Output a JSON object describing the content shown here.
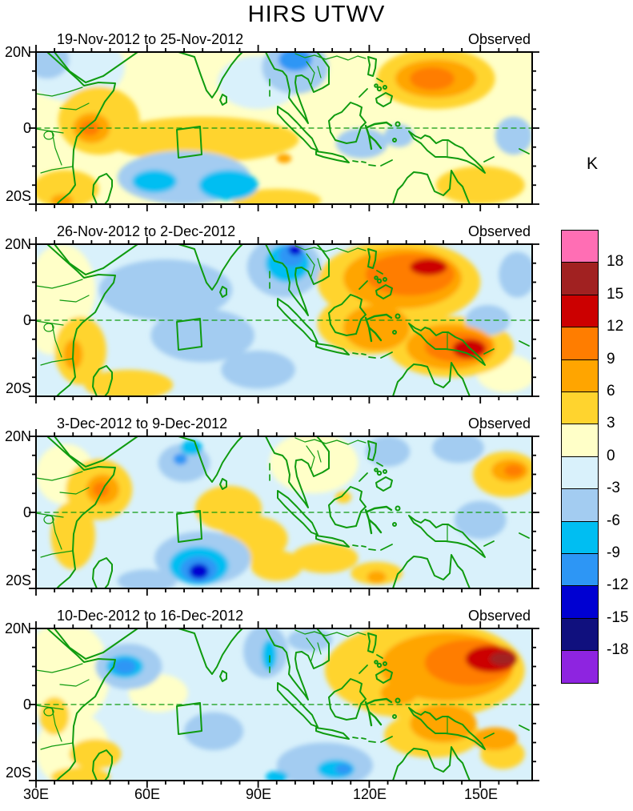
{
  "title": "HIRS UTWV",
  "unit_label": "K",
  "chart_data": {
    "type": "heatmap",
    "title": "HIRS UTWV",
    "subtitle": "HIRS upper-tropospheric water vapor brightness-temperature anomaly maps, weekly means",
    "unit": "K",
    "axes": {
      "lon_labels": [
        "30E",
        "60E",
        "90E",
        "120E",
        "150E"
      ],
      "lon_ticks_deg": [
        30,
        60,
        90,
        120,
        150
      ],
      "lat_labels": [
        "20N",
        "0",
        "20S"
      ],
      "lon_range": [
        30,
        164
      ],
      "lat_range": [
        -20,
        20
      ],
      "minor_tick_deg": 5
    },
    "colorbar": {
      "label": "K",
      "tick_labels": [
        "18",
        "15",
        "12",
        "9",
        "6",
        "3",
        "0",
        "-3",
        "-6",
        "-9",
        "-12",
        "-15",
        "-18"
      ],
      "band_width": 3,
      "colors": [
        "#8e24e0",
        "#10107e",
        "#0000d2",
        "#2d96f5",
        "#00bef2",
        "#a3ccf1",
        "#d9f1fb",
        "#ffffc8",
        "#ffd42e",
        "#ffa500",
        "#ff7d00",
        "#cc0000",
        "#a12121",
        "#ff6eb4"
      ]
    },
    "region_box_deg": {
      "lon_min": 68,
      "lon_max": 74.5,
      "lat_min": -7.5,
      "lat_max": 0
    },
    "panels": [
      {
        "label": "19-Nov-2012 to 25-Nov-2012",
        "annotation": "Observed",
        "base": 1,
        "features": [
          {
            "lon": 40,
            "lat": 16,
            "rlon": 14,
            "rlat": 9,
            "v": -1
          },
          {
            "lon": 33,
            "lat": 18,
            "rlon": 6,
            "rlat": 5,
            "v": -4
          },
          {
            "lon": 47,
            "lat": 2,
            "rlon": 11,
            "rlat": 9,
            "v": 4
          },
          {
            "lon": 45,
            "lat": 0,
            "rlon": 5,
            "rlat": 4,
            "v": 7
          },
          {
            "lon": 44.5,
            "lat": 0,
            "rlon": 2.6,
            "rlat": 2,
            "v": 10
          },
          {
            "lon": 75,
            "lat": -3,
            "rlon": 26,
            "rlat": 6,
            "v": 4
          },
          {
            "lon": 38,
            "lat": -16,
            "rlon": 9,
            "rlat": 5,
            "v": 4
          },
          {
            "lon": 37,
            "lat": -19,
            "rlon": 3,
            "rlat": 1.6,
            "v": 7
          },
          {
            "lon": 95,
            "lat": -19,
            "rlon": 12,
            "rlat": 3,
            "v": 4
          },
          {
            "lon": 70,
            "lat": -13,
            "rlon": 18,
            "rlat": 7,
            "v": -4
          },
          {
            "lon": 62,
            "lat": -14,
            "rlon": 6,
            "rlat": 3,
            "v": -7
          },
          {
            "lon": 82,
            "lat": -15,
            "rlon": 8,
            "rlat": 4,
            "v": -7
          },
          {
            "lon": 100,
            "lat": 16,
            "rlon": 9,
            "rlat": 7,
            "v": -4
          },
          {
            "lon": 100,
            "lat": 18,
            "rlon": 4.5,
            "rlat": 3,
            "v": -10
          },
          {
            "lon": 90,
            "lat": 12,
            "rlon": 11,
            "rlat": 7,
            "v": -1
          },
          {
            "lon": 138,
            "lat": 13,
            "rlon": 16,
            "rlat": 8,
            "v": 4
          },
          {
            "lon": 138,
            "lat": 13,
            "rlon": 11,
            "rlat": 5,
            "v": 7
          },
          {
            "lon": 137,
            "lat": 13,
            "rlon": 6,
            "rlat": 3,
            "v": 10
          },
          {
            "lon": 118,
            "lat": -4,
            "rlon": 7,
            "rlat": 4,
            "v": -4
          },
          {
            "lon": 128,
            "lat": -2,
            "rlon": 4,
            "rlat": 3,
            "v": -4
          },
          {
            "lon": 159,
            "lat": -2,
            "rlon": 5,
            "rlat": 5,
            "v": -4
          },
          {
            "lon": 150,
            "lat": -15,
            "rlon": 12,
            "rlat": 5,
            "v": 4
          },
          {
            "lon": 97,
            "lat": -8,
            "rlon": 2,
            "rlat": 1.2,
            "v": 7
          }
        ]
      },
      {
        "label": "26-Nov-2012 to 2-Dec-2012",
        "annotation": "Observed",
        "base": -1,
        "features": [
          {
            "lon": 37,
            "lat": 8,
            "rlon": 9,
            "rlat": 12,
            "v": 1
          },
          {
            "lon": 34,
            "lat": -2,
            "rlon": 6,
            "rlat": 7,
            "v": 1
          },
          {
            "lon": 42,
            "lat": -8,
            "rlon": 7,
            "rlat": 9,
            "v": 4
          },
          {
            "lon": 40,
            "lat": -9,
            "rlon": 2.6,
            "rlat": 4,
            "v": 7
          },
          {
            "lon": 55,
            "lat": -17,
            "rlon": 12,
            "rlat": 4,
            "v": 4
          },
          {
            "lon": 65,
            "lat": 8,
            "rlon": 18,
            "rlat": 8,
            "v": -4
          },
          {
            "lon": 75,
            "lat": -4,
            "rlon": 14,
            "rlat": 7,
            "v": -4
          },
          {
            "lon": 90,
            "lat": -13,
            "rlon": 10,
            "rlat": 5,
            "v": -4
          },
          {
            "lon": 97,
            "lat": 14,
            "rlon": 10,
            "rlat": 8,
            "v": -4
          },
          {
            "lon": 98,
            "lat": 15,
            "rlon": 6,
            "rlat": 5,
            "v": -7
          },
          {
            "lon": 99,
            "lat": 17,
            "rlon": 3.5,
            "rlat": 3,
            "v": -10
          },
          {
            "lon": 100,
            "lat": 18.5,
            "rlon": 1.8,
            "rlat": 1.4,
            "v": -13
          },
          {
            "lon": 128,
            "lat": 10,
            "rlon": 22,
            "rlat": 11,
            "v": 4
          },
          {
            "lon": 129,
            "lat": 11,
            "rlon": 16,
            "rlat": 8,
            "v": 7
          },
          {
            "lon": 131,
            "lat": 12,
            "rlon": 12,
            "rlat": 5.5,
            "v": 10
          },
          {
            "lon": 136,
            "lat": 14,
            "rlon": 5,
            "rlat": 2.2,
            "v": 13
          },
          {
            "lon": 120,
            "lat": -1,
            "rlon": 14,
            "rlat": 8,
            "v": 4
          },
          {
            "lon": 122,
            "lat": -2,
            "rlon": 9,
            "rlat": 6,
            "v": 7
          },
          {
            "lon": 142,
            "lat": -7,
            "rlon": 17,
            "rlat": 8,
            "v": 4
          },
          {
            "lon": 142,
            "lat": -7,
            "rlon": 12,
            "rlat": 6,
            "v": 7
          },
          {
            "lon": 144,
            "lat": -7,
            "rlon": 9,
            "rlat": 4,
            "v": 10
          },
          {
            "lon": 147,
            "lat": -7.5,
            "rlon": 4.5,
            "rlat": 2.5,
            "v": 13
          },
          {
            "lon": 160,
            "lat": 12,
            "rlon": 5,
            "rlat": 6,
            "v": -4
          },
          {
            "lon": 157,
            "lat": -14,
            "rlon": 8,
            "rlat": 5,
            "v": 1
          },
          {
            "lon": 152,
            "lat": 0,
            "rlon": 6,
            "rlat": 4,
            "v": -4
          }
        ]
      },
      {
        "label": "3-Dec-2012 to 9-Dec-2012",
        "annotation": "Observed",
        "base": -1,
        "features": [
          {
            "lon": 38,
            "lat": 10,
            "rlon": 8,
            "rlat": 8,
            "v": 1
          },
          {
            "lon": 47,
            "lat": 6,
            "rlon": 9,
            "rlat": 8,
            "v": 4
          },
          {
            "lon": 48,
            "lat": 6,
            "rlon": 4.5,
            "rlat": 4,
            "v": 7
          },
          {
            "lon": 47.5,
            "lat": 6,
            "rlon": 2.2,
            "rlat": 2,
            "v": 10
          },
          {
            "lon": 40,
            "lat": -6,
            "rlon": 6,
            "rlat": 9,
            "v": 4
          },
          {
            "lon": 70,
            "lat": 13,
            "rlon": 7,
            "rlat": 5,
            "v": -4
          },
          {
            "lon": 69,
            "lat": 14,
            "rlon": 1.9,
            "rlat": 1.5,
            "v": -10
          },
          {
            "lon": 72,
            "lat": 17,
            "rlon": 3,
            "rlat": 2,
            "v": -7
          },
          {
            "lon": 82,
            "lat": 1,
            "rlon": 9,
            "rlat": 6,
            "v": 4
          },
          {
            "lon": 89,
            "lat": -7,
            "rlon": 9,
            "rlat": 6,
            "v": 4
          },
          {
            "lon": 95,
            "lat": -14,
            "rlon": 7,
            "rlat": 4,
            "v": 4
          },
          {
            "lon": 75,
            "lat": -12,
            "rlon": 13,
            "rlat": 7,
            "v": -4
          },
          {
            "lon": 74,
            "lat": -14,
            "rlon": 8,
            "rlat": 5,
            "v": -7
          },
          {
            "lon": 74,
            "lat": -15,
            "rlon": 5,
            "rlat": 3.5,
            "v": -10
          },
          {
            "lon": 74,
            "lat": -15.5,
            "rlon": 2.6,
            "rlat": 2,
            "v": -13
          },
          {
            "lon": 60,
            "lat": -18,
            "rlon": 8,
            "rlat": 3,
            "v": -4
          },
          {
            "lon": 105,
            "lat": 13,
            "rlon": 12,
            "rlat": 8,
            "v": 1
          },
          {
            "lon": 113,
            "lat": 4,
            "rlon": 2.2,
            "rlat": 1.6,
            "v": 4
          },
          {
            "lon": 108,
            "lat": -12,
            "rlon": 9,
            "rlat": 4,
            "v": 4
          },
          {
            "lon": 122,
            "lat": -16,
            "rlon": 7,
            "rlat": 3,
            "v": 4
          },
          {
            "lon": 122,
            "lat": -17,
            "rlon": 2.6,
            "rlat": 1.6,
            "v": 7
          },
          {
            "lon": 150,
            "lat": -2,
            "rlon": 7,
            "rlat": 5,
            "v": -4
          },
          {
            "lon": 157,
            "lat": 10,
            "rlon": 9,
            "rlat": 6,
            "v": 4
          },
          {
            "lon": 158,
            "lat": 11,
            "rlon": 5,
            "rlat": 3,
            "v": 7
          },
          {
            "lon": 159,
            "lat": 11,
            "rlon": 2.6,
            "rlat": 1.6,
            "v": 10
          },
          {
            "lon": 144,
            "lat": 17,
            "rlon": 7,
            "rlat": 4,
            "v": -4
          },
          {
            "lon": 125,
            "lat": 16,
            "rlon": 6,
            "rlat": 4,
            "v": -4
          }
        ]
      },
      {
        "label": "10-Dec-2012 to 16-Dec-2012",
        "annotation": "Observed",
        "base": -1,
        "features": [
          {
            "lon": 38,
            "lat": 8,
            "rlon": 12,
            "rlat": 14,
            "v": 1
          },
          {
            "lon": 40,
            "lat": -12,
            "rlon": 10,
            "rlat": 10,
            "v": 1
          },
          {
            "lon": 63,
            "lat": 3,
            "rlon": 8,
            "rlat": 5,
            "v": 1
          },
          {
            "lon": 35,
            "lat": -3,
            "rlon": 4,
            "rlat": 5,
            "v": 4
          },
          {
            "lon": 46,
            "lat": -13,
            "rlon": 7,
            "rlat": 4,
            "v": 4
          },
          {
            "lon": 42,
            "lat": -19,
            "rlon": 8,
            "rlat": 2.6,
            "v": 4
          },
          {
            "lon": 55,
            "lat": 10,
            "rlon": 9,
            "rlat": 6,
            "v": -4
          },
          {
            "lon": 54,
            "lat": 10,
            "rlon": 5,
            "rlat": 3,
            "v": -7
          },
          {
            "lon": 54,
            "lat": 10,
            "rlon": 3,
            "rlat": 2,
            "v": -10
          },
          {
            "lon": 78,
            "lat": -7,
            "rlon": 8,
            "rlat": 5,
            "v": -4
          },
          {
            "lon": 92,
            "lat": 14,
            "rlon": 6,
            "rlat": 7,
            "v": -4
          },
          {
            "lon": 93,
            "lat": 13,
            "rlon": 2,
            "rlat": 4,
            "v": -7
          },
          {
            "lon": 104,
            "lat": 17,
            "rlon": 6,
            "rlat": 3,
            "v": -4
          },
          {
            "lon": 135,
            "lat": 9,
            "rlon": 27,
            "rlat": 13,
            "v": 4
          },
          {
            "lon": 141,
            "lat": 10,
            "rlon": 18,
            "rlat": 9,
            "v": 7
          },
          {
            "lon": 147,
            "lat": 11,
            "rlon": 12,
            "rlat": 6,
            "v": 10
          },
          {
            "lon": 153,
            "lat": 12,
            "rlon": 7,
            "rlat": 3.5,
            "v": 13
          },
          {
            "lon": 156,
            "lat": 12,
            "rlon": 3.5,
            "rlat": 1.8,
            "v": 16
          },
          {
            "lon": 125,
            "lat": 2,
            "rlon": 8,
            "rlat": 5,
            "v": 4
          },
          {
            "lon": 128,
            "lat": 3,
            "rlon": 5,
            "rlat": 3,
            "v": 7
          },
          {
            "lon": 137,
            "lat": -8,
            "rlon": 13,
            "rlat": 6,
            "v": 4
          },
          {
            "lon": 140,
            "lat": -5,
            "rlon": 9,
            "rlat": 5,
            "v": 7
          },
          {
            "lon": 108,
            "lat": -16,
            "rlon": 13,
            "rlat": 6,
            "v": -4
          },
          {
            "lon": 111,
            "lat": -17,
            "rlon": 5,
            "rlat": 2.5,
            "v": -7
          },
          {
            "lon": 113,
            "lat": -17,
            "rlon": 2.2,
            "rlat": 1.4,
            "v": -10
          },
          {
            "lon": 95,
            "lat": -19,
            "rlon": 3,
            "rlat": 1.6,
            "v": -7
          },
          {
            "lon": 154,
            "lat": -9,
            "rlon": 6,
            "rlat": 3,
            "v": 7
          },
          {
            "lon": 156,
            "lat": -13,
            "rlon": 6,
            "rlat": 4,
            "v": 4
          }
        ]
      }
    ],
    "map_colors": {
      "coastline": "#0f9b0f",
      "frame": "#000000",
      "background": "#ffffff"
    }
  }
}
